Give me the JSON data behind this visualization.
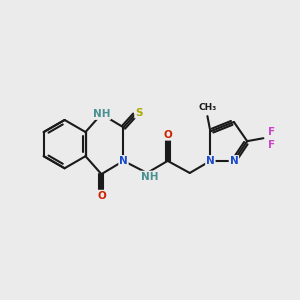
{
  "background_color": "#ebebeb",
  "bond_color": "#1a1a1a",
  "bond_width": 1.5,
  "atom_colors": {
    "N": "#1a4acc",
    "NH": "#4a9090",
    "O": "#cc2200",
    "S": "#aaaa00",
    "F": "#cc44cc",
    "C": "#1a1a1a"
  },
  "font_size_atom": 7.5,
  "font_size_small": 6.5
}
